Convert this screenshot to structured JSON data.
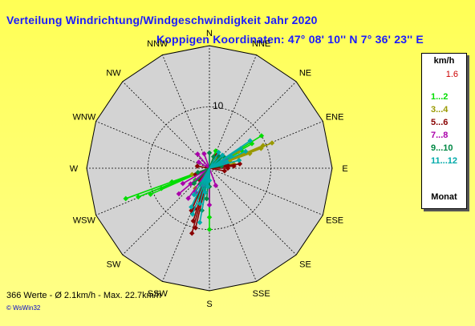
{
  "title": "Verteilung Windrichtung/Windgeschwindigkeit  Jahr 2020",
  "subtitle": "Koppigen  Koordinaten: 47° 08' 10'' N  7° 36' 23'' E",
  "chart_data": {
    "type": "scatter",
    "projection": "polar",
    "directions": [
      "N",
      "NNE",
      "NE",
      "ENE",
      "E",
      "ESE",
      "SE",
      "SSE",
      "S",
      "SSW",
      "SW",
      "WSW",
      "W",
      "WNW",
      "NW",
      "NNW"
    ],
    "rings": [
      10,
      20
    ],
    "ring_label": "10",
    "legend_title": "km/h",
    "calm_value": "1.6",
    "legend_footer": "Monat",
    "series": [
      {
        "name": "1...2",
        "color": "#00dd00",
        "points": [
          [
            250,
            14.5
          ],
          [
            248,
            12.5
          ],
          [
            246,
            10.5
          ],
          [
            247,
            8.5
          ],
          [
            250,
            6.5
          ],
          [
            65,
            4
          ],
          [
            62,
            6
          ],
          [
            60,
            8
          ],
          [
            58,
            10
          ],
          [
            180,
            8
          ],
          [
            180,
            10
          ],
          [
            200,
            5
          ],
          [
            230,
            3
          ],
          [
            20,
            3
          ]
        ]
      },
      {
        "name": "3...4",
        "color": "#999900",
        "points": [
          [
            70,
            7
          ],
          [
            69,
            9
          ],
          [
            68,
            11
          ],
          [
            67,
            9.5
          ],
          [
            75,
            5
          ],
          [
            80,
            4
          ],
          [
            200,
            4
          ],
          [
            195,
            6
          ],
          [
            190,
            5
          ],
          [
            215,
            4
          ],
          [
            250,
            3
          ],
          [
            30,
            2
          ],
          [
            60,
            5.5
          ],
          [
            72,
            3.5
          ]
        ]
      },
      {
        "name": "5...6",
        "color": "#880000",
        "points": [
          [
            80,
            3
          ],
          [
            82,
            5
          ],
          [
            85,
            4
          ],
          [
            90,
            3
          ],
          [
            200,
            7
          ],
          [
            197,
            9
          ],
          [
            195,
            11
          ],
          [
            193,
            10
          ],
          [
            203,
            7.5
          ],
          [
            220,
            2.5
          ],
          [
            245,
            2.5
          ],
          [
            280,
            2
          ],
          [
            30,
            2.5
          ],
          [
            100,
            2.5
          ]
        ]
      },
      {
        "name": "7...8",
        "color": "#aa00aa",
        "points": [
          [
            215,
            6
          ],
          [
            230,
            4
          ],
          [
            240,
            5
          ],
          [
            200,
            3
          ],
          [
            190,
            4
          ],
          [
            180,
            6
          ],
          [
            160,
            3
          ],
          [
            340,
            2.5
          ],
          [
            320,
            3
          ],
          [
            300,
            2
          ],
          [
            60,
            3
          ],
          [
            70,
            2.5
          ],
          [
            230,
            6.5
          ],
          [
            210,
            4.5
          ]
        ]
      },
      {
        "name": "9...10",
        "color": "#008844",
        "points": [
          [
            60,
            2
          ],
          [
            50,
            3
          ],
          [
            40,
            2.5
          ],
          [
            20,
            2
          ],
          [
            0,
            2.5
          ],
          [
            180,
            3
          ],
          [
            185,
            5
          ],
          [
            190,
            7
          ],
          [
            200,
            2.5
          ],
          [
            250,
            2
          ],
          [
            80,
            2
          ],
          [
            210,
            3
          ],
          [
            225,
            3.5
          ],
          [
            195,
            3.5
          ]
        ]
      },
      {
        "name": "11...12",
        "color": "#00aaaa",
        "points": [
          [
            58,
            6
          ],
          [
            56,
            8
          ],
          [
            60,
            4
          ],
          [
            180,
            2
          ],
          [
            185,
            3
          ],
          [
            190,
            4
          ],
          [
            195,
            6
          ],
          [
            200,
            8
          ],
          [
            205,
            7
          ],
          [
            210,
            5
          ],
          [
            45,
            3
          ],
          [
            30,
            3
          ],
          [
            70,
            3
          ],
          [
            75,
            5
          ],
          [
            65,
            6.5
          ],
          [
            190,
            9
          ]
        ]
      }
    ],
    "stats": {
      "count": "366 Werte",
      "mean": "Ø 2.1km/h",
      "max": "Max. 22.7km/h"
    }
  },
  "footer_text": "366 Werte    -    Ø 2.1km/h   -   Max. 22.7km/h",
  "credit": "© WsWin32"
}
